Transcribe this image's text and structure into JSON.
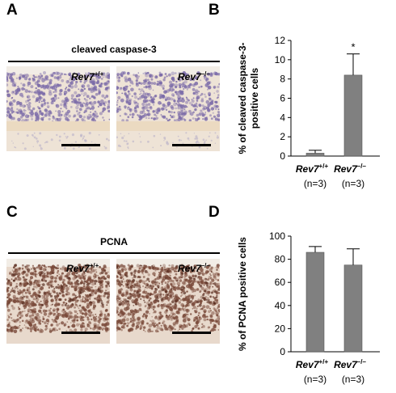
{
  "panels": {
    "A": {
      "letter": "A",
      "title": "cleaved caspase-3",
      "images": [
        {
          "genotype": "Rev7",
          "superscript": "+/+"
        },
        {
          "genotype": "Rev7",
          "superscript": "–/–"
        }
      ],
      "colors": {
        "stain": "#7a6aa8",
        "background": "#eee3d6"
      }
    },
    "B": {
      "letter": "B"
    },
    "C": {
      "letter": "C",
      "title": "PCNA",
      "images": [
        {
          "genotype": "Rev7",
          "superscript": "+/+"
        },
        {
          "genotype": "Rev7",
          "superscript": "–/–"
        }
      ],
      "colors": {
        "stain": "#7a4a3a",
        "background": "#e8d9cc"
      }
    },
    "D": {
      "letter": "D"
    }
  },
  "chart_data": [
    {
      "type": "bar",
      "panel": "B",
      "ylabel": "% of cleaved caspase-3-positive cells",
      "ylabel_lines": [
        "% of cleaved caspase-3-",
        "positive cells"
      ],
      "ylim": [
        0,
        12
      ],
      "yticks": [
        0,
        2,
        4,
        6,
        8,
        10,
        12
      ],
      "categories": [
        {
          "name": "Rev7",
          "sup": "+/+",
          "n": "(n=3)"
        },
        {
          "name": "Rev7",
          "sup": "–/–",
          "n": "(n=3)"
        }
      ],
      "values": [
        0.3,
        8.4
      ],
      "errors": [
        0.3,
        2.2
      ],
      "annotations": [
        "",
        "*"
      ],
      "bar_color": "#808080"
    },
    {
      "type": "bar",
      "panel": "D",
      "ylabel": "% of PCNA positive cells",
      "ylabel_lines": [
        "% of PCNA positive cells"
      ],
      "ylim": [
        0,
        100
      ],
      "yticks": [
        0,
        20,
        40,
        60,
        80,
        100
      ],
      "categories": [
        {
          "name": "Rev7",
          "sup": "+/+",
          "n": "(n=3)"
        },
        {
          "name": "Rev7",
          "sup": "–/–",
          "n": "(n=3)"
        }
      ],
      "values": [
        86,
        75
      ],
      "errors": [
        5,
        14
      ],
      "annotations": [
        "",
        ""
      ],
      "bar_color": "#808080"
    }
  ]
}
